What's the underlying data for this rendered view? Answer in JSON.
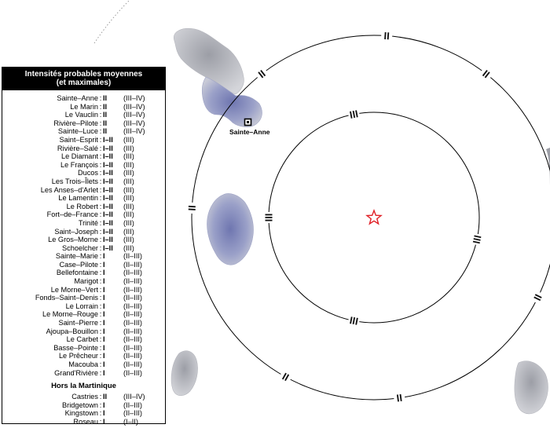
{
  "legend": {
    "title_line1": "Intensités probables moyennes",
    "title_line2": "(et maximales)",
    "martinique": [
      {
        "name": "Sainte–Anne",
        "value": "II",
        "max": "(III–IV)"
      },
      {
        "name": "Le Marin",
        "value": "II",
        "max": "(III–IV)"
      },
      {
        "name": "Le Vauclin",
        "value": "II",
        "max": "(III–IV)"
      },
      {
        "name": "Rivière–Pilote",
        "value": "II",
        "max": "(III–IV)"
      },
      {
        "name": "Sainte–Luce",
        "value": "II",
        "max": "(III–IV)"
      },
      {
        "name": "Saint–Esprit",
        "value": "I–II",
        "max": "(III)"
      },
      {
        "name": "Rivière–Salé",
        "value": "I–II",
        "max": "(III)"
      },
      {
        "name": "Le Diamant",
        "value": "I–II",
        "max": "(III)"
      },
      {
        "name": "Le François",
        "value": "I–II",
        "max": "(III)"
      },
      {
        "name": "Ducos",
        "value": "I–II",
        "max": "(III)"
      },
      {
        "name": "Les Trois–Îlets",
        "value": "I–II",
        "max": "(III)"
      },
      {
        "name": "Les Anses–d'Arlet",
        "value": "I–II",
        "max": "(III)"
      },
      {
        "name": "Le Lamentin",
        "value": "I–II",
        "max": "(III)"
      },
      {
        "name": "Le Robert",
        "value": "I–II",
        "max": "(III)"
      },
      {
        "name": "Fort–de–France",
        "value": "I–II",
        "max": "(III)"
      },
      {
        "name": "Trinité",
        "value": "I–II",
        "max": "(III)"
      },
      {
        "name": "Saint–Joseph",
        "value": "I–II",
        "max": "(III)"
      },
      {
        "name": "Le Gros–Morne",
        "value": "I–II",
        "max": "(III)"
      },
      {
        "name": "Schoelcher",
        "value": "I–II",
        "max": "(III)"
      },
      {
        "name": "Sainte–Marie",
        "value": "I",
        "max": "(II–III)"
      },
      {
        "name": "Case–Pilote",
        "value": "I",
        "max": "(II–III)"
      },
      {
        "name": "Bellefontaine",
        "value": "I",
        "max": "(II–III)"
      },
      {
        "name": "Marigot",
        "value": "I",
        "max": "(II–III)"
      },
      {
        "name": "Le Morne–Vert",
        "value": "I",
        "max": "(II–III)"
      },
      {
        "name": "Fonds–Saint–Denis",
        "value": "I",
        "max": "(II–III)"
      },
      {
        "name": "Le Lorrain",
        "value": "I",
        "max": "(II–III)"
      },
      {
        "name": "Le Morne–Rouge",
        "value": "I",
        "max": "(II–III)"
      },
      {
        "name": "Saint–Pierre",
        "value": "I",
        "max": "(II–III)"
      },
      {
        "name": "Ajoupa–Bouillon",
        "value": "I",
        "max": "(II–III)"
      },
      {
        "name": "Le Carbet",
        "value": "I",
        "max": "(II–III)"
      },
      {
        "name": "Basse–Pointe",
        "value": "I",
        "max": "(II–III)"
      },
      {
        "name": "Le Prêcheur",
        "value": "I",
        "max": "(II–III)"
      },
      {
        "name": "Macouba",
        "value": "I",
        "max": "(II–III)"
      },
      {
        "name": "Grand'Rivière",
        "value": "I",
        "max": "(II–III)"
      }
    ],
    "hors_title": "Hors la Martinique",
    "hors": [
      {
        "name": "Castries",
        "value": "II",
        "max": "(III–IV)"
      },
      {
        "name": "Bridgetown",
        "value": "I",
        "max": "(II–III)"
      },
      {
        "name": "Kingstown",
        "value": "I",
        "max": "(II–III)"
      },
      {
        "name": "Roseau",
        "value": "I",
        "max": "(I–II)"
      }
    ]
  },
  "map": {
    "city_label": "Sainte–Anne",
    "ring_labels": {
      "inner": "III",
      "outer": "II"
    },
    "colors": {
      "ring": "#000000",
      "land": "#c9cbd6",
      "land_relief": "#7d84b8",
      "epicenter": "#e01f26"
    }
  }
}
